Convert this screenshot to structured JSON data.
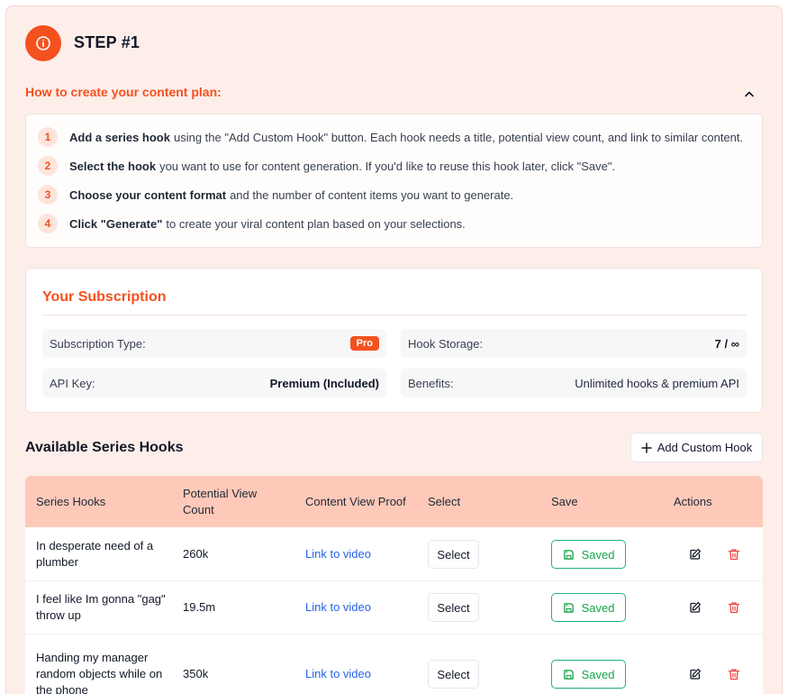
{
  "step": {
    "title": "STEP #1",
    "icon": "info-icon",
    "accent": "#f4511e"
  },
  "howto": {
    "title": "How to create your content plan:",
    "steps": [
      {
        "num": "1",
        "bold": "Add a series hook",
        "text": "using the \"Add Custom Hook\" button. Each hook needs a title, potential view count, and link to similar content."
      },
      {
        "num": "2",
        "bold": "Select the hook",
        "text": "you want to use for content generation. If you'd like to reuse this hook later, click \"Save\"."
      },
      {
        "num": "3",
        "bold": "Choose your content format",
        "text": "and the number of content items you want to generate."
      },
      {
        "num": "4",
        "bold": "Click \"Generate\"",
        "text": "to create your viral content plan based on your selections."
      }
    ]
  },
  "subscription": {
    "title": "Your Subscription",
    "type_label": "Subscription Type:",
    "type_value": "Pro",
    "storage_label": "Hook Storage:",
    "storage_value": "7 / ∞",
    "api_label": "API Key:",
    "api_value": "Premium (Included)",
    "benefits_label": "Benefits:",
    "benefits_value": "Unlimited hooks & premium API"
  },
  "hooks": {
    "title": "Available Series Hooks",
    "add_button": "Add Custom Hook",
    "headers": {
      "hook": "Series Hooks",
      "views": "Potential View Count",
      "proof": "Content View Proof",
      "select": "Select",
      "save": "Save",
      "actions": "Actions"
    },
    "rows": [
      {
        "hook": "In desperate need of a plumber",
        "views": "260k",
        "proof": "Link to video",
        "select": "Select",
        "save": "Saved"
      },
      {
        "hook": "I feel like Im gonna \"gag\" throw up",
        "views": "19.5m",
        "proof": "Link to video",
        "select": "Select",
        "save": "Saved"
      },
      {
        "hook": "Handing my manager random objects while on the phone",
        "views": "350k",
        "proof": "Link to video",
        "select": "Select",
        "save": "Saved"
      }
    ]
  }
}
